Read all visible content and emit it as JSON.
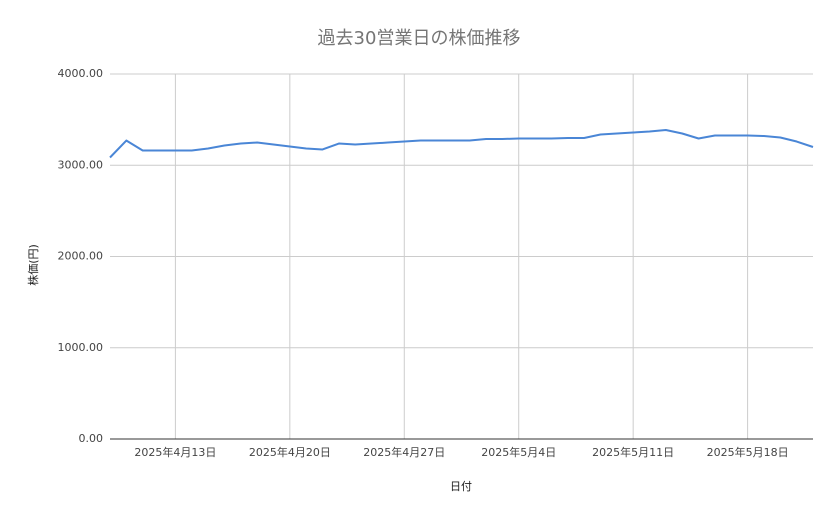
{
  "chart_data": {
    "type": "line",
    "title": "過去30営業日の株価推移",
    "x_label": "日付",
    "y_label": "株価(円)",
    "x": [
      "2025-04-09",
      "2025-04-10",
      "2025-04-11",
      "2025-04-12",
      "2025-04-13",
      "2025-04-14",
      "2025-04-15",
      "2025-04-16",
      "2025-04-17",
      "2025-04-18",
      "2025-04-19",
      "2025-04-20",
      "2025-04-21",
      "2025-04-22",
      "2025-04-23",
      "2025-04-24",
      "2025-04-25",
      "2025-04-26",
      "2025-04-27",
      "2025-04-28",
      "2025-04-29",
      "2025-04-30",
      "2025-05-01",
      "2025-05-02",
      "2025-05-03",
      "2025-05-04",
      "2025-05-05",
      "2025-05-06",
      "2025-05-07",
      "2025-05-08",
      "2025-05-09",
      "2025-05-10",
      "2025-05-11",
      "2025-05-12",
      "2025-05-13",
      "2025-05-14",
      "2025-05-15",
      "2025-05-16",
      "2025-05-17",
      "2025-05-18",
      "2025-05-19",
      "2025-05-20",
      "2025-05-21",
      "2025-05-22"
    ],
    "series": [
      {
        "name": "株価",
        "color": "#4a86d6",
        "values": [
          3085,
          3271,
          3162,
          3162,
          3162,
          3162,
          3184,
          3216,
          3238,
          3249,
          3227,
          3205,
          3184,
          3173,
          3238,
          3227,
          3238,
          3249,
          3260,
          3271,
          3271,
          3271,
          3271,
          3288,
          3288,
          3293,
          3293,
          3293,
          3299,
          3299,
          3337,
          3348,
          3359,
          3370,
          3386,
          3348,
          3293,
          3326,
          3326,
          3326,
          3320,
          3304,
          3260,
          3200
        ]
      }
    ],
    "xlim": [
      "2025-04-09",
      "2025-05-22"
    ],
    "xticks": [
      {
        "value": "2025-04-13",
        "label": "2025年4月13日"
      },
      {
        "value": "2025-04-20",
        "label": "2025年4月20日"
      },
      {
        "value": "2025-04-27",
        "label": "2025年4月27日"
      },
      {
        "value": "2025-05-04",
        "label": "2025年5月4日"
      },
      {
        "value": "2025-05-11",
        "label": "2025年5月11日"
      },
      {
        "value": "2025-05-18",
        "label": "2025年5月18日"
      }
    ],
    "ylim": [
      0,
      4000
    ],
    "yticks": [
      {
        "value": 0,
        "label": "0.00"
      },
      {
        "value": 1000,
        "label": "1000.00"
      },
      {
        "value": 2000,
        "label": "2000.00"
      },
      {
        "value": 3000,
        "label": "3000.00"
      },
      {
        "value": 4000,
        "label": "4000.00"
      }
    ],
    "grid": true
  }
}
